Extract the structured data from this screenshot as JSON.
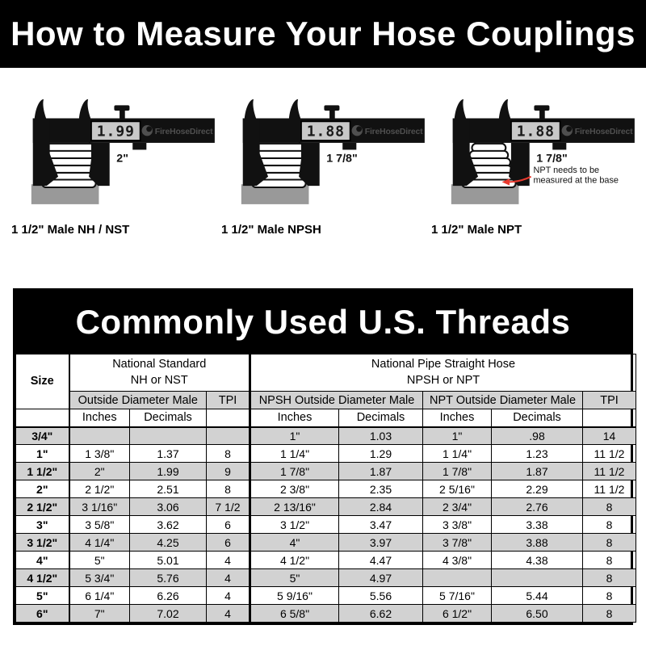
{
  "page_title": "How to Measure Your Hose Couplings",
  "diagrams": [
    {
      "caption": "1 1/2\" Male NH / NST",
      "display_value": "1.99",
      "measured_width": "2\"",
      "brand": "FireHoseDirect",
      "thread_type": "straight"
    },
    {
      "caption": "1 1/2\" Male NPSH",
      "display_value": "1.88",
      "measured_width": "1 7/8\"",
      "brand": "FireHoseDirect",
      "thread_type": "straight"
    },
    {
      "caption": "1 1/2\" Male NPT",
      "display_value": "1.88",
      "measured_width": "1 7/8\"",
      "brand": "FireHoseDirect",
      "thread_type": "tapered",
      "annotation": {
        "line1": "NPT needs to be",
        "line2": "measured at the base"
      }
    }
  ],
  "table": {
    "title": "Commonly Used U.S. Threads",
    "size_label": "Size",
    "group_nh": [
      "National Standard",
      "NH or NST"
    ],
    "group_pipe": [
      "National Pipe Straight Hose",
      "NPSH or NPT"
    ],
    "sub_od_male": "Outside Diameter Male",
    "sub_npsh_od": "NPSH Outside Diameter Male",
    "sub_npt_od": "NPT Outside Diameter Male",
    "tpi_label": "TPI",
    "inches_label": "Inches",
    "decimals_label": "Decimals",
    "rows": [
      [
        "3/4\"",
        "",
        "",
        "",
        "1\"",
        "1.03",
        "1\"",
        ".98",
        "14"
      ],
      [
        "1\"",
        "1 3/8\"",
        "1.37",
        "8",
        "1 1/4\"",
        "1.29",
        "1 1/4\"",
        "1.23",
        "11 1/2"
      ],
      [
        "1 1/2\"",
        "2\"",
        "1.99",
        "9",
        "1 7/8\"",
        "1.87",
        "1 7/8\"",
        "1.87",
        "11 1/2"
      ],
      [
        "2\"",
        "2 1/2\"",
        "2.51",
        "8",
        "2 3/8\"",
        "2.35",
        "2 5/16\"",
        "2.29",
        "11 1/2"
      ],
      [
        "2 1/2\"",
        "3 1/16\"",
        "3.06",
        "7 1/2",
        "2 13/16\"",
        "2.84",
        "2 3/4\"",
        "2.76",
        "8"
      ],
      [
        "3\"",
        "3 5/8\"",
        "3.62",
        "6",
        "3 1/2\"",
        "3.47",
        "3 3/8\"",
        "3.38",
        "8"
      ],
      [
        "3 1/2\"",
        "4 1/4\"",
        "4.25",
        "6",
        "4\"",
        "3.97",
        "3 7/8\"",
        "3.88",
        "8"
      ],
      [
        "4\"",
        "5\"",
        "5.01",
        "4",
        "4 1/2\"",
        "4.47",
        "4 3/8\"",
        "4.38",
        "8"
      ],
      [
        "4 1/2\"",
        "5 3/4\"",
        "5.76",
        "4",
        "5\"",
        "4.97",
        "",
        "",
        "8"
      ],
      [
        "5\"",
        "6 1/4\"",
        "6.26",
        "4",
        "5 9/16\"",
        "5.56",
        "5 7/16\"",
        "5.44",
        "8"
      ],
      [
        "6\"",
        "7\"",
        "7.02",
        "4",
        "6 5/8\"",
        "6.62",
        "6 1/2\"",
        "6.50",
        "8"
      ]
    ]
  },
  "colors": {
    "banner_bg": "#000000",
    "banner_text": "#ffffff",
    "row_stripe": "#d2d2d2",
    "coupling_gray": "#999999",
    "display_bg": "#c8c8c8",
    "brand_gray": "#4f4f4f",
    "arrow_red": "#e8392e"
  }
}
